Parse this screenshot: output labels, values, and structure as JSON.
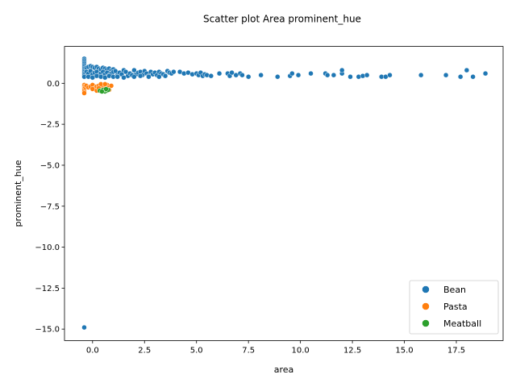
{
  "chart_data": {
    "type": "scatter",
    "title": "Scatter plot Area prominent_hue",
    "xlabel": "area",
    "ylabel": "prominent_hue",
    "xlim": [
      -1.35,
      19.75
    ],
    "ylim": [
      -15.7,
      2.25
    ],
    "xticks": [
      0.0,
      2.5,
      5.0,
      7.5,
      10.0,
      12.5,
      15.0,
      17.5
    ],
    "xtick_labels": [
      "0.0",
      "2.5",
      "5.0",
      "7.5",
      "10.0",
      "12.5",
      "15.0",
      "17.5"
    ],
    "yticks": [
      0.0,
      -2.5,
      -5.0,
      -7.5,
      -10.0,
      -12.5,
      -15.0
    ],
    "ytick_labels": [
      "0.0",
      "−2.5",
      "−5.0",
      "−7.5",
      "−10.0",
      "−12.5",
      "−15.0"
    ],
    "grid": false,
    "legend": "lower-right",
    "series": [
      {
        "name": "Bean",
        "color": "#1f77b4",
        "points": [
          [
            -0.4,
            1.5
          ],
          [
            -0.4,
            1.4
          ],
          [
            -0.4,
            1.3
          ],
          [
            -0.4,
            1.2
          ],
          [
            -0.4,
            1.1
          ],
          [
            -0.4,
            1.0
          ],
          [
            -0.4,
            0.9
          ],
          [
            -0.4,
            0.8
          ],
          [
            -0.4,
            0.7
          ],
          [
            -0.4,
            0.6
          ],
          [
            -0.4,
            0.5
          ],
          [
            -0.4,
            0.4
          ],
          [
            -0.3,
            0.95
          ],
          [
            -0.2,
            1.0
          ],
          [
            -0.1,
            1.05
          ],
          [
            0.0,
            1.0
          ],
          [
            0.1,
            0.95
          ],
          [
            0.2,
            1.0
          ],
          [
            0.3,
            0.9
          ],
          [
            0.4,
            0.85
          ],
          [
            0.5,
            0.95
          ],
          [
            0.6,
            0.9
          ],
          [
            0.7,
            0.85
          ],
          [
            0.8,
            0.9
          ],
          [
            0.9,
            0.8
          ],
          [
            1.0,
            0.85
          ],
          [
            -0.3,
            0.7
          ],
          [
            -0.2,
            0.6
          ],
          [
            -0.1,
            0.75
          ],
          [
            0.0,
            0.55
          ],
          [
            0.1,
            0.65
          ],
          [
            0.2,
            0.7
          ],
          [
            0.3,
            0.5
          ],
          [
            0.4,
            0.6
          ],
          [
            0.5,
            0.7
          ],
          [
            0.6,
            0.55
          ],
          [
            0.7,
            0.65
          ],
          [
            0.8,
            0.5
          ],
          [
            0.9,
            0.6
          ],
          [
            1.0,
            0.7
          ],
          [
            -0.2,
            0.4
          ],
          [
            0.0,
            0.35
          ],
          [
            0.2,
            0.45
          ],
          [
            0.4,
            0.4
          ],
          [
            0.6,
            0.35
          ],
          [
            0.8,
            0.45
          ],
          [
            1.0,
            0.4
          ],
          [
            1.2,
            0.5
          ],
          [
            1.1,
            0.75
          ],
          [
            1.3,
            0.65
          ],
          [
            1.4,
            0.55
          ],
          [
            1.5,
            0.8
          ],
          [
            1.6,
            0.7
          ],
          [
            1.7,
            0.45
          ],
          [
            1.8,
            0.6
          ],
          [
            1.9,
            0.5
          ],
          [
            2.0,
            0.8
          ],
          [
            2.1,
            0.55
          ],
          [
            2.2,
            0.65
          ],
          [
            2.3,
            0.7
          ],
          [
            2.4,
            0.5
          ],
          [
            2.5,
            0.75
          ],
          [
            2.6,
            0.6
          ],
          [
            2.7,
            0.45
          ],
          [
            2.8,
            0.7
          ],
          [
            2.9,
            0.55
          ],
          [
            3.0,
            0.65
          ],
          [
            3.1,
            0.5
          ],
          [
            3.2,
            0.7
          ],
          [
            3.3,
            0.6
          ],
          [
            3.4,
            0.55
          ],
          [
            3.5,
            0.45
          ],
          [
            3.6,
            0.75
          ],
          [
            3.7,
            0.65
          ],
          [
            3.8,
            0.6
          ],
          [
            3.9,
            0.7
          ],
          [
            1.2,
            0.4
          ],
          [
            1.5,
            0.35
          ],
          [
            2.0,
            0.4
          ],
          [
            2.3,
            0.45
          ],
          [
            2.7,
            0.4
          ],
          [
            3.2,
            0.4
          ],
          [
            3.5,
            0.45
          ],
          [
            4.2,
            0.7
          ],
          [
            4.4,
            0.6
          ],
          [
            4.6,
            0.65
          ],
          [
            4.8,
            0.55
          ],
          [
            5.0,
            0.6
          ],
          [
            5.1,
            0.5
          ],
          [
            5.2,
            0.65
          ],
          [
            5.3,
            0.45
          ],
          [
            5.4,
            0.55
          ],
          [
            5.5,
            0.5
          ],
          [
            5.7,
            0.45
          ],
          [
            6.1,
            0.6
          ],
          [
            6.5,
            0.6
          ],
          [
            6.6,
            0.45
          ],
          [
            6.7,
            0.65
          ],
          [
            6.9,
            0.5
          ],
          [
            7.1,
            0.6
          ],
          [
            7.2,
            0.5
          ],
          [
            7.5,
            0.4
          ],
          [
            8.1,
            0.5
          ],
          [
            8.9,
            0.4
          ],
          [
            9.5,
            0.45
          ],
          [
            9.6,
            0.6
          ],
          [
            9.9,
            0.5
          ],
          [
            10.5,
            0.6
          ],
          [
            11.2,
            0.6
          ],
          [
            11.3,
            0.5
          ],
          [
            11.6,
            0.5
          ],
          [
            12.0,
            0.6
          ],
          [
            12.0,
            0.8
          ],
          [
            12.4,
            0.4
          ],
          [
            12.8,
            0.4
          ],
          [
            13.0,
            0.45
          ],
          [
            13.2,
            0.5
          ],
          [
            13.9,
            0.4
          ],
          [
            14.1,
            0.4
          ],
          [
            14.3,
            0.5
          ],
          [
            15.8,
            0.5
          ],
          [
            17.0,
            0.5
          ],
          [
            17.7,
            0.4
          ],
          [
            18.0,
            0.8
          ],
          [
            18.3,
            0.4
          ],
          [
            18.9,
            0.6
          ],
          [
            -0.4,
            -14.9
          ]
        ]
      },
      {
        "name": "Pasta",
        "color": "#ff7f0e",
        "points": [
          [
            -0.4,
            -0.1
          ],
          [
            -0.4,
            -0.2
          ],
          [
            -0.4,
            -0.3
          ],
          [
            -0.4,
            -0.4
          ],
          [
            -0.4,
            -0.5
          ],
          [
            -0.4,
            -0.6
          ],
          [
            -0.35,
            -0.25
          ],
          [
            -0.3,
            -0.15
          ],
          [
            -0.2,
            -0.25
          ],
          [
            -0.1,
            -0.2
          ],
          [
            0.0,
            -0.1
          ],
          [
            0.1,
            -0.3
          ],
          [
            0.2,
            -0.2
          ],
          [
            0.3,
            -0.15
          ],
          [
            0.4,
            -0.35
          ],
          [
            0.5,
            -0.2
          ],
          [
            0.6,
            -0.3
          ],
          [
            0.7,
            -0.1
          ],
          [
            0.8,
            -0.25
          ],
          [
            0.9,
            -0.15
          ],
          [
            0.0,
            -0.35
          ],
          [
            0.2,
            -0.45
          ],
          [
            0.4,
            -0.05
          ],
          [
            0.6,
            -0.05
          ],
          [
            0.3,
            -0.3
          ],
          [
            0.8,
            -0.4
          ]
        ]
      },
      {
        "name": "Meatball",
        "color": "#2ca02c",
        "points": [
          [
            0.35,
            -0.45
          ],
          [
            0.5,
            -0.4
          ],
          [
            0.6,
            -0.5
          ],
          [
            0.7,
            -0.45
          ],
          [
            0.75,
            -0.4
          ],
          [
            0.65,
            -0.35
          ],
          [
            0.45,
            -0.5
          ]
        ]
      }
    ]
  }
}
